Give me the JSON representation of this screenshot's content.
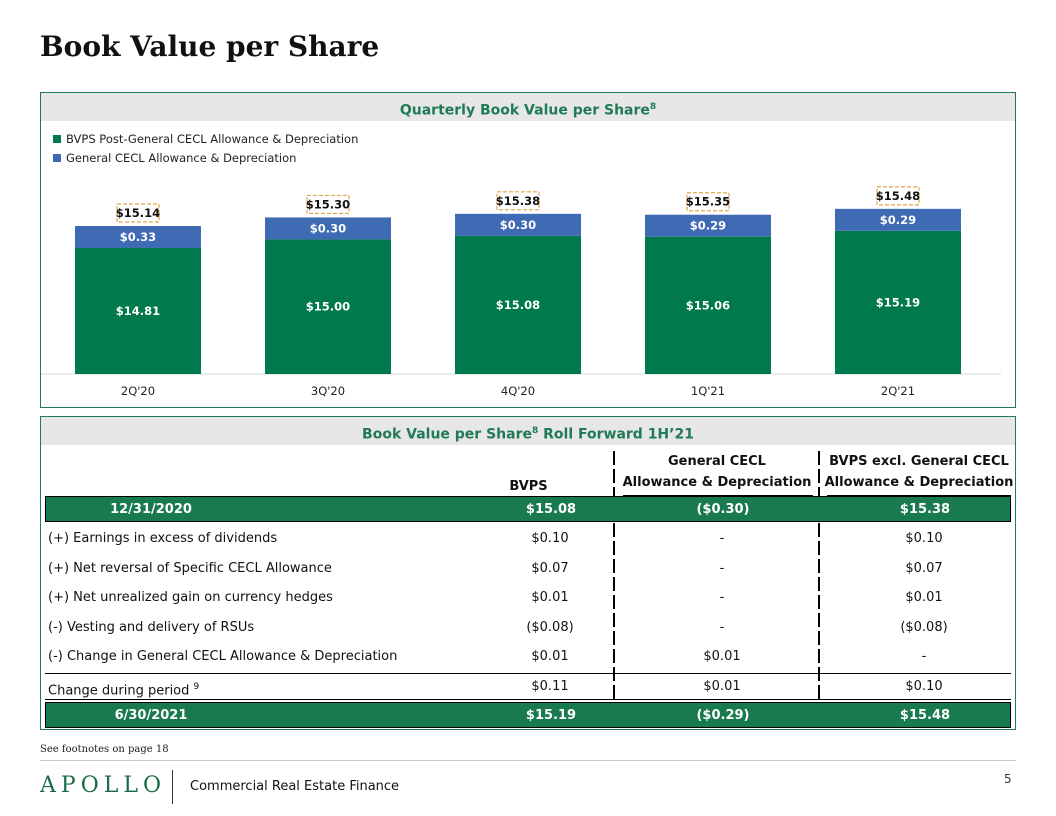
{
  "page": {
    "title": "Book Value per Share",
    "footnote": "See footnotes on page 18",
    "logo_text": "APOLLO",
    "subbrand": "Commercial Real Estate Finance",
    "page_number": "5"
  },
  "colors": {
    "green": "#007a4d",
    "blue": "#3f6bb5",
    "callout_border": "#e0a64a",
    "header_bg": "#e7e7e7",
    "highlight_bg": "#1a7a4f"
  },
  "chart_panel": {
    "title": "Quarterly Book Value per Share",
    "title_sup": "8"
  },
  "chart_data": {
    "type": "bar",
    "stacked": true,
    "title": "Quarterly Book Value per Share",
    "categories": [
      "2Q'20",
      "3Q'20",
      "4Q'20",
      "1Q'21",
      "2Q'21"
    ],
    "series": [
      {
        "name": "BVPS Post-General CECL Allowance & Depreciation",
        "color": "#007a4d",
        "values": [
          14.81,
          15.0,
          15.08,
          15.06,
          15.19
        ],
        "labels": [
          "$14.81",
          "$15.00",
          "$15.08",
          "$15.06",
          "$15.19"
        ]
      },
      {
        "name": "General CECL Allowance & Depreciation",
        "color": "#3f6bb5",
        "values": [
          0.33,
          0.3,
          0.3,
          0.29,
          0.29
        ],
        "labels": [
          "$0.33",
          "$0.30",
          "$0.30",
          "$0.29",
          "$0.29"
        ]
      }
    ],
    "totals": [
      "$15.14",
      "$15.30",
      "$15.38",
      "$15.35",
      "$15.48"
    ],
    "legend_position": "top-left",
    "y_axis_visible": false,
    "grid": false
  },
  "table": {
    "title": "Book Value per Share",
    "title_sup": "8",
    "title_suffix": "Roll Forward 1H’21",
    "headers": {
      "col1": "BVPS",
      "col2_line1": "General CECL",
      "col2_line2": "Allowance & Depreciation",
      "col3_line1": "BVPS excl. General CECL",
      "col3_line2": "Allowance & Depreciation"
    },
    "start_row": {
      "label": "12/31/2020",
      "bvps": "$15.08",
      "cecl": "($0.30)",
      "excl": "$15.38"
    },
    "rows": [
      {
        "label": "(+) Earnings in excess of dividends",
        "bvps": "$0.10",
        "cecl": "-",
        "excl": "$0.10"
      },
      {
        "label": "(+) Net reversal of Specific CECL Allowance",
        "bvps": "$0.07",
        "cecl": "-",
        "excl": "$0.07"
      },
      {
        "label": "(+) Net unrealized gain on currency hedges",
        "bvps": "$0.01",
        "cecl": "-",
        "excl": "$0.01"
      },
      {
        "label": "(-) Vesting and delivery of RSUs",
        "bvps": "($0.08)",
        "cecl": "-",
        "excl": "($0.08)"
      },
      {
        "label": "(-) Change in General CECL Allowance & Depreciation",
        "bvps": "$0.01",
        "cecl": "$0.01",
        "excl": "-"
      }
    ],
    "change_row": {
      "label": "Change during period",
      "label_sup": "9",
      "bvps": "$0.11",
      "cecl": "$0.01",
      "excl": "$0.10"
    },
    "end_row": {
      "label": "6/30/2021",
      "bvps": "$15.19",
      "cecl": "($0.29)",
      "excl": "$15.48"
    }
  }
}
